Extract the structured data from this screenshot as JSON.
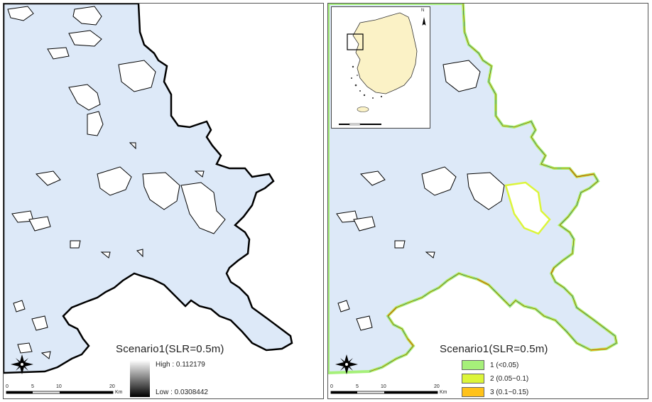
{
  "left_panel": {
    "legend_title": "Scenario1(SLR=0.5m)",
    "gradient": {
      "high_label": "High : 0.112179",
      "low_label": "Low : 0.0308442",
      "color_high": "#ffffff",
      "color_low": "#000000"
    },
    "scale": {
      "ticks": [
        "0",
        "5",
        "10",
        "20"
      ],
      "unit": "Km"
    }
  },
  "right_panel": {
    "legend_title": "Scenario1(SLR=0.5m)",
    "classes": [
      {
        "label": "1 (<0.05)",
        "color": "#a6f07a"
      },
      {
        "label": "2 (0.05~0.1)",
        "color": "#dcf53a"
      },
      {
        "label": "3 (0.1~0.15)",
        "color": "#ffc21a"
      }
    ],
    "scale": {
      "ticks": [
        "0",
        "5",
        "10",
        "20"
      ],
      "unit": "Km"
    },
    "inset": {
      "north_label": "N"
    }
  },
  "colors": {
    "sea": "#dde9f8",
    "land": "#ffffff",
    "inset_land": "#fbf2c6"
  }
}
